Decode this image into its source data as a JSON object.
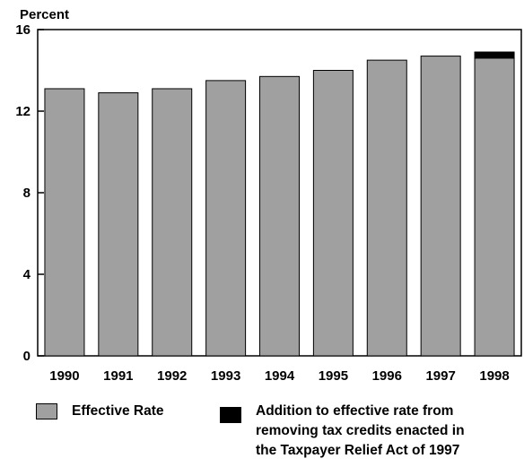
{
  "chart_data": {
    "type": "bar",
    "ylabel": "Percent",
    "ylim": [
      0,
      16
    ],
    "yticks": [
      0,
      4,
      8,
      12,
      16
    ],
    "categories": [
      "1990",
      "1991",
      "1992",
      "1993",
      "1994",
      "1995",
      "1996",
      "1997",
      "1998"
    ],
    "series": [
      {
        "name": "Effective Rate",
        "color": "#a0a0a0",
        "values": [
          13.1,
          12.9,
          13.1,
          13.5,
          13.7,
          14.0,
          14.5,
          14.7,
          14.6
        ]
      },
      {
        "name": "Addition to effective rate from removing tax credits enacted in the Taxpayer Relief Act of 1997",
        "color": "#000000",
        "values": [
          0,
          0,
          0,
          0,
          0,
          0,
          0,
          0,
          0.3
        ]
      }
    ],
    "stacked": true,
    "grid": false
  },
  "legend": {
    "item1": "Effective Rate",
    "item2": "Addition to effective rate from\nremoving tax credits enacted in\nthe Taxpayer Relief Act of 1997"
  }
}
